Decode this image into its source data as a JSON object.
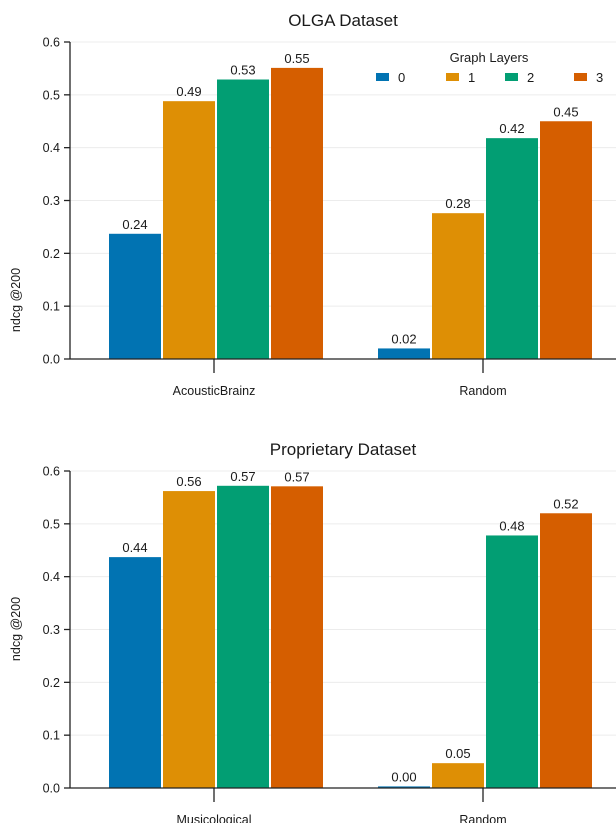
{
  "chart_data": [
    {
      "type": "bar",
      "title": "OLGA Dataset",
      "ylabel": "ndcg @200",
      "xlabel": "",
      "ylim": [
        0,
        0.6
      ],
      "yticks": [
        "0.0",
        "0.1",
        "0.2",
        "0.3",
        "0.4",
        "0.5",
        "0.6"
      ],
      "grid": true,
      "categories": [
        "AcousticBrainz",
        "Random"
      ],
      "legend": {
        "title": "Graph Layers",
        "placement": "top-right"
      },
      "series": [
        {
          "name": "0",
          "color": "#0173b2",
          "values": [
            0.237,
            0.02
          ],
          "labels": [
            "0.24",
            "0.02"
          ]
        },
        {
          "name": "1",
          "color": "#de8f05",
          "values": [
            0.488,
            0.276
          ],
          "labels": [
            "0.49",
            "0.28"
          ]
        },
        {
          "name": "2",
          "color": "#029e73",
          "values": [
            0.529,
            0.418
          ],
          "labels": [
            "0.53",
            "0.42"
          ]
        },
        {
          "name": "3",
          "color": "#d55e00",
          "values": [
            0.551,
            0.45
          ],
          "labels": [
            "0.55",
            "0.45"
          ]
        }
      ]
    },
    {
      "type": "bar",
      "title": "Proprietary Dataset",
      "ylabel": "ndcg @200",
      "xlabel": "",
      "ylim": [
        0,
        0.6
      ],
      "yticks": [
        "0.0",
        "0.1",
        "0.2",
        "0.3",
        "0.4",
        "0.5",
        "0.6"
      ],
      "grid": true,
      "categories": [
        "Musicological",
        "Random"
      ],
      "series": [
        {
          "name": "0",
          "color": "#0173b2",
          "values": [
            0.437,
            0.003
          ],
          "labels": [
            "0.44",
            "0.00"
          ]
        },
        {
          "name": "1",
          "color": "#de8f05",
          "values": [
            0.562,
            0.047
          ],
          "labels": [
            "0.56",
            "0.05"
          ]
        },
        {
          "name": "2",
          "color": "#029e73",
          "values": [
            0.572,
            0.478
          ],
          "labels": [
            "0.57",
            "0.48"
          ]
        },
        {
          "name": "3",
          "color": "#d55e00",
          "values": [
            0.571,
            0.52
          ],
          "labels": [
            "0.57",
            "0.52"
          ]
        }
      ]
    }
  ]
}
